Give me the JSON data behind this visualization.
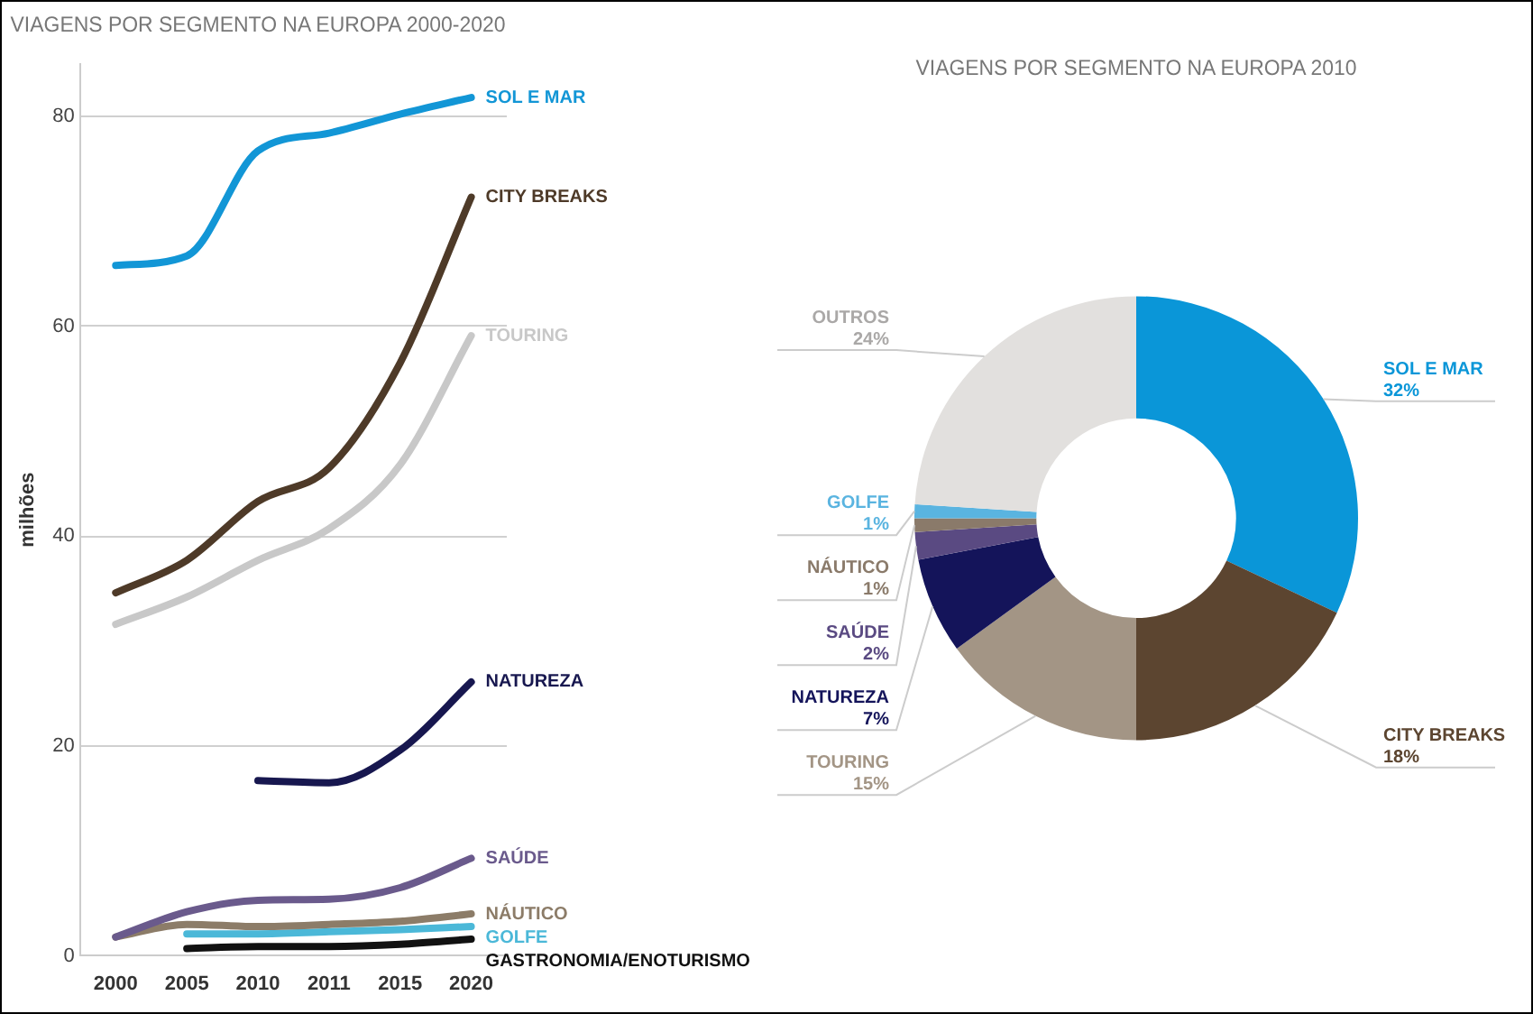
{
  "chart_data": [
    {
      "type": "line",
      "title": "VIAGENS POR SEGMENTO NA EUROPA 2000-2020",
      "ylabel": "milhões",
      "categories": [
        "2000",
        "2005",
        "2010",
        "2011",
        "2015",
        "2020"
      ],
      "series": [
        {
          "name": "SOL E MAR",
          "color": "#1296d6",
          "values": [
            65.8,
            66.7,
            76.7,
            78.4,
            80.2,
            81.8
          ]
        },
        {
          "name": "CITY BREAKS",
          "color": "#4e3a28",
          "values": [
            34.6,
            37.7,
            43.3,
            46.5,
            56.5,
            72.3
          ]
        },
        {
          "name": "TOURING",
          "color": "#c8c8c8",
          "values": [
            31.6,
            34.2,
            37.7,
            40.7,
            46.8,
            59.1
          ]
        },
        {
          "name": "NATUREZA",
          "color": "#17174f",
          "values": [
            null,
            null,
            16.7,
            16.5,
            19.6,
            26.1
          ]
        },
        {
          "name": "SAÚDE",
          "color": "#6a5a8c",
          "values": [
            1.8,
            4.2,
            5.3,
            5.4,
            6.5,
            9.3
          ]
        },
        {
          "name": "NÁUTICO",
          "color": "#8c7c68",
          "values": [
            1.8,
            3.0,
            2.8,
            3.0,
            3.3,
            4.0
          ]
        },
        {
          "name": "GOLFE",
          "color": "#4bb8d8",
          "values": [
            null,
            2.1,
            2.1,
            2.3,
            2.5,
            2.8
          ]
        },
        {
          "name": "GASTRONOMIA/ENOTURISMO",
          "color": "#111111",
          "values": [
            null,
            0.7,
            0.9,
            0.9,
            1.1,
            1.6
          ]
        }
      ],
      "ylim": [
        0,
        85
      ],
      "yticks": [
        0,
        20,
        40,
        60,
        80
      ],
      "grid": "y",
      "legend": false,
      "marker": "none",
      "line_style": "solid"
    },
    {
      "type": "donut",
      "title": "VIAGENS POR SEGMENTO NA EUROPA 2010",
      "categories": [
        "SOL E MAR",
        "CITY BREAKS",
        "TOURING",
        "NATUREZA",
        "SAÚDE",
        "NÁUTICO",
        "GOLFE",
        "OUTROS"
      ],
      "values": [
        32,
        18,
        15,
        7,
        2,
        1,
        1,
        24
      ],
      "value_labels": [
        "32%",
        "18%",
        "15%",
        "7%",
        "2%",
        "1%",
        "1%",
        "24%"
      ],
      "colors": [
        "#0a96d8",
        "#5c4530",
        "#a39585",
        "#14145a",
        "#5a4a82",
        "#8a7a6a",
        "#5ab4e0",
        "#e2e0de"
      ],
      "legend": false
    }
  ]
}
